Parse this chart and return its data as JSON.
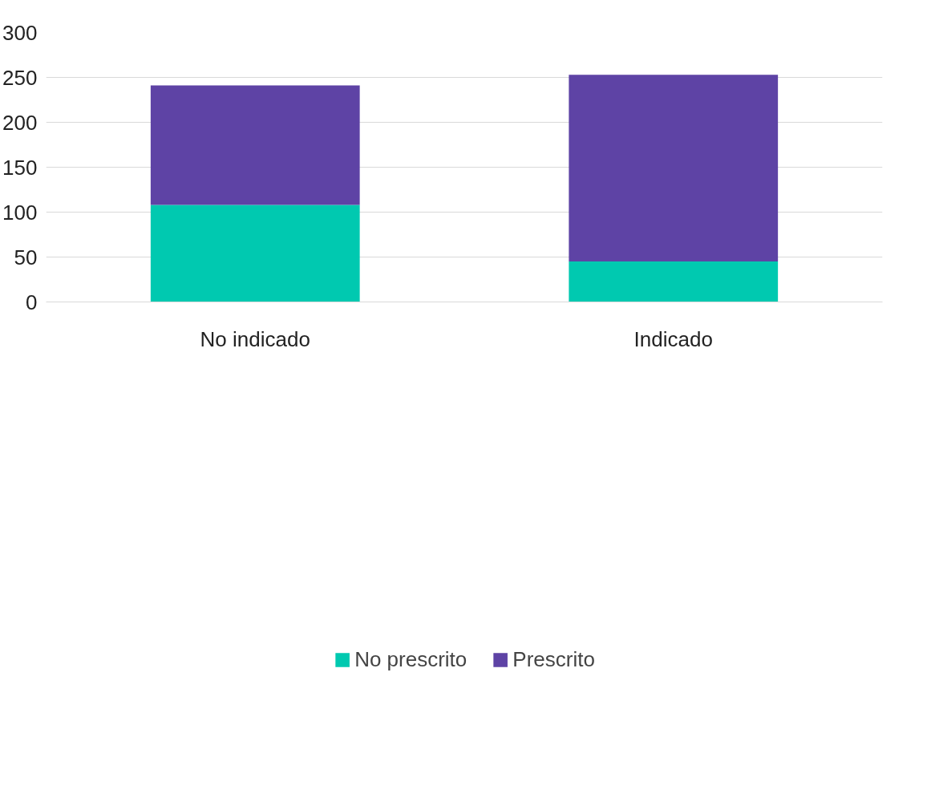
{
  "chart_data": {
    "type": "bar",
    "stacked": true,
    "categories": [
      "No indicado",
      "Indicado"
    ],
    "series": [
      {
        "name": "No prescrito",
        "color": "#00c9b0",
        "values": [
          108,
          45
        ]
      },
      {
        "name": "Prescrito",
        "color": "#5e43a5",
        "values": [
          133,
          208
        ]
      }
    ],
    "ylim": [
      0,
      300
    ],
    "yticks": [
      0,
      50,
      100,
      150,
      200,
      250,
      300
    ],
    "grid": "y",
    "legend": "bottom"
  }
}
